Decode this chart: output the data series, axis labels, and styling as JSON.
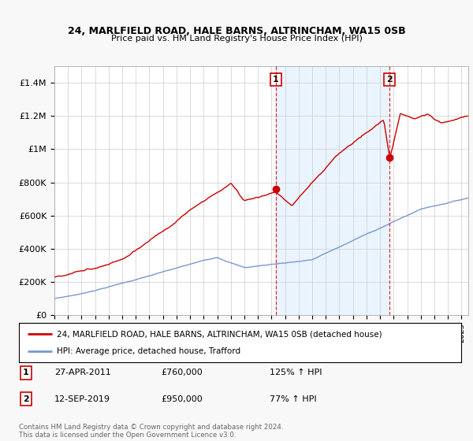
{
  "title1": "24, MARLFIELD ROAD, HALE BARNS, ALTRINCHAM, WA15 0SB",
  "title2": "Price paid vs. HM Land Registry's House Price Index (HPI)",
  "ylim": [
    0,
    1500000
  ],
  "yticks": [
    0,
    200000,
    400000,
    600000,
    800000,
    1000000,
    1200000,
    1400000
  ],
  "ytick_labels": [
    "£0",
    "£200K",
    "£400K",
    "£600K",
    "£800K",
    "£1M",
    "£1.2M",
    "£1.4M"
  ],
  "red_line_color": "#cc0000",
  "blue_line_color": "#7799cc",
  "vline_color": "#cc0000",
  "marker_color": "#cc0000",
  "sale1_x": 2011.32,
  "sale1_y": 760000,
  "sale1_label": "1",
  "sale2_x": 2019.71,
  "sale2_y": 950000,
  "sale2_label": "2",
  "legend_red": "24, MARLFIELD ROAD, HALE BARNS, ALTRINCHAM, WA15 0SB (detached house)",
  "legend_blue": "HPI: Average price, detached house, Trafford",
  "annotation1_num": "1",
  "annotation1_date": "27-APR-2011",
  "annotation1_price": "£760,000",
  "annotation1_hpi": "125% ↑ HPI",
  "annotation2_num": "2",
  "annotation2_date": "12-SEP-2019",
  "annotation2_price": "£950,000",
  "annotation2_hpi": "77% ↑ HPI",
  "footer": "Contains HM Land Registry data © Crown copyright and database right 2024.\nThis data is licensed under the Open Government Licence v3.0.",
  "bg_color": "#f8f8f8",
  "plot_bg_color": "#ffffff",
  "highlight_color": "#ddeeff",
  "xlim_start": 1995.0,
  "xlim_end": 2025.5
}
